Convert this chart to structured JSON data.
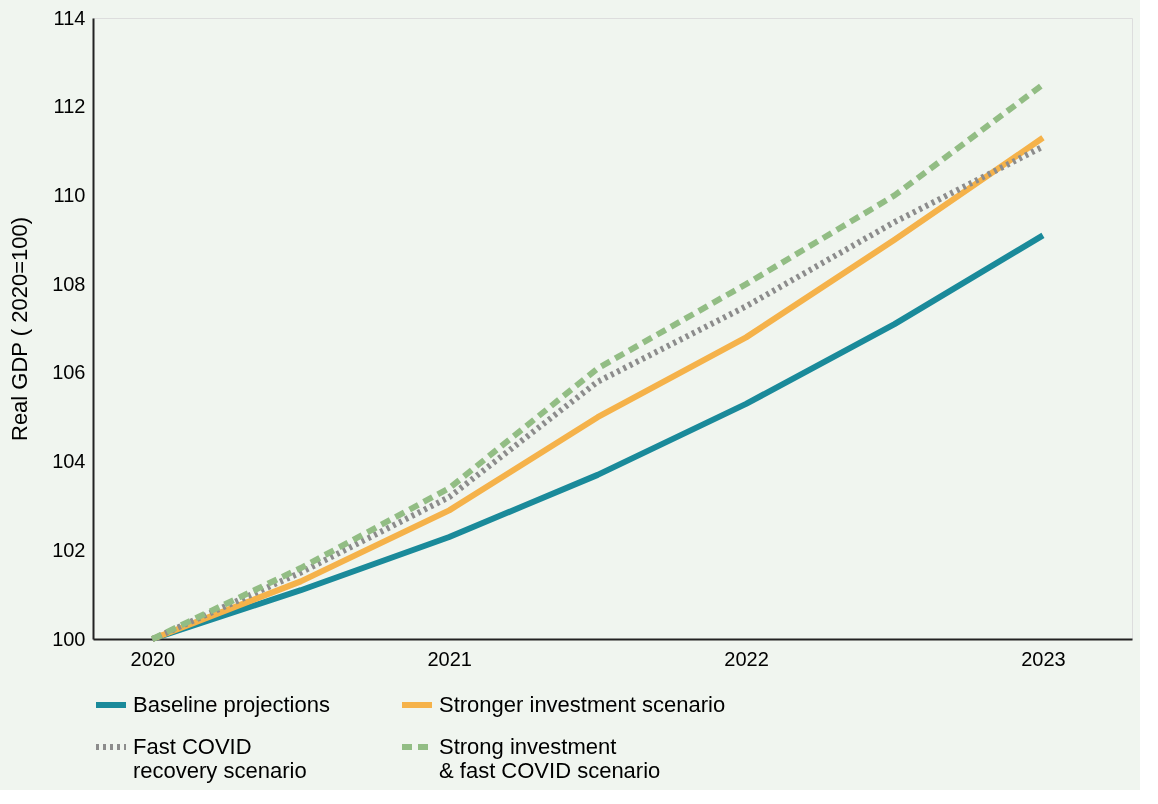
{
  "chart_data": {
    "type": "line",
    "ylabel": "Real GDP ( 2020=100)",
    "x": [
      2020,
      2020.5,
      2021,
      2021.5,
      2022,
      2022.5,
      2023
    ],
    "xlim": [
      2019.8,
      2023.3
    ],
    "xticks": [
      2020,
      2021,
      2022,
      2023
    ],
    "ylim": [
      100,
      114
    ],
    "yticks": [
      100,
      102,
      104,
      106,
      108,
      110,
      112,
      114
    ],
    "grid": false,
    "legend": "bottom",
    "marker": "none",
    "series": [
      {
        "name": "Baseline projections",
        "color": "#1a8a9a",
        "line_style": "solid",
        "values": [
          100,
          101.1,
          102.3,
          103.7,
          105.3,
          107.1,
          109.1
        ]
      },
      {
        "name": "Stronger investment scenario",
        "color": "#f5b24a",
        "line_style": "solid",
        "values": [
          100,
          101.3,
          102.9,
          105.0,
          106.8,
          109.0,
          111.3
        ]
      },
      {
        "name": "Fast COVID\nrecovery scenario",
        "color": "#8c8c8c",
        "line_style": "dotted",
        "values": [
          100,
          101.5,
          103.2,
          105.8,
          107.5,
          109.4,
          111.1
        ]
      },
      {
        "name": "Strong investment\n& fast COVID scenario",
        "color": "#92bd84",
        "line_style": "dashed",
        "values": [
          100,
          101.6,
          103.4,
          106.1,
          108.0,
          110.0,
          112.5
        ]
      }
    ]
  }
}
